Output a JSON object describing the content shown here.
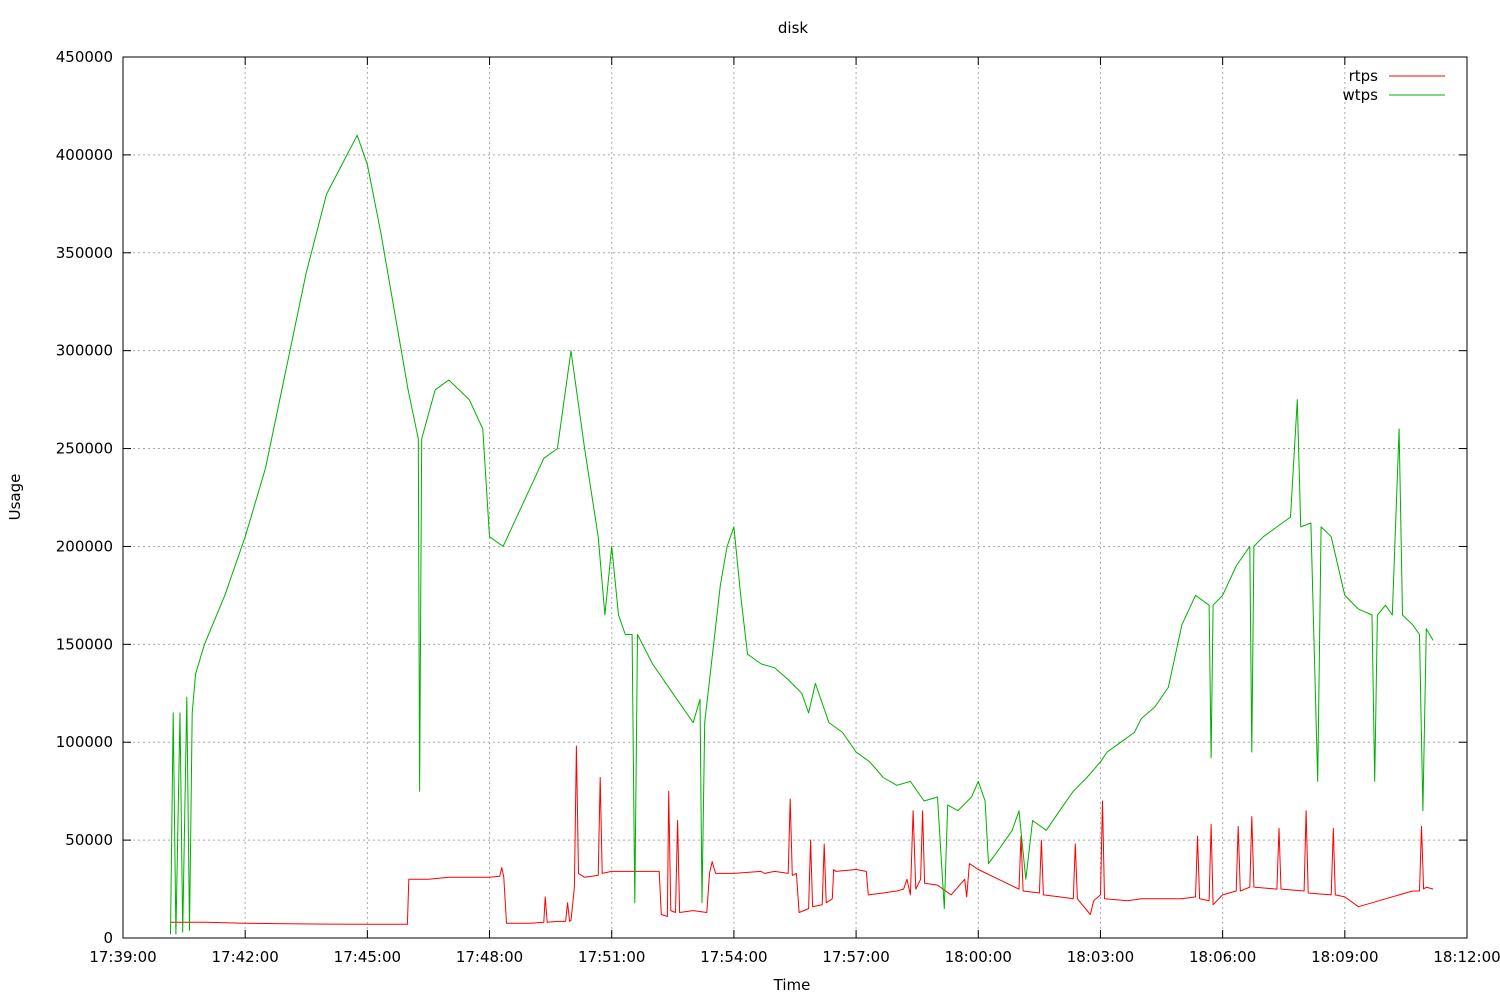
{
  "chart_data": {
    "type": "line",
    "title": "disk",
    "xlabel": "Time",
    "ylabel": "Usage",
    "x_ticks": [
      "17:39:00",
      "17:42:00",
      "17:45:00",
      "17:48:00",
      "17:51:00",
      "17:54:00",
      "17:57:00",
      "18:00:00",
      "18:03:00",
      "18:06:00",
      "18:09:00",
      "18:12:00"
    ],
    "x_range": [
      "17:39:00",
      "18:12:00"
    ],
    "ylim": [
      0,
      450000
    ],
    "y_ticks": [
      0,
      50000,
      100000,
      150000,
      200000,
      250000,
      300000,
      350000,
      400000,
      450000
    ],
    "grid": true,
    "legend_position": "top-right",
    "series": [
      {
        "name": "rtps",
        "color": "#ff0000",
        "points": [
          [
            "17:40:10",
            8000
          ],
          [
            "17:41:00",
            8000
          ],
          [
            "17:42:00",
            7500
          ],
          [
            "17:43:00",
            7300
          ],
          [
            "17:44:00",
            7100
          ],
          [
            "17:45:00",
            7000
          ],
          [
            "17:45:59",
            7000
          ],
          [
            "17:46:01",
            30000
          ],
          [
            "17:46:30",
            30000
          ],
          [
            "17:47:00",
            31000
          ],
          [
            "17:47:30",
            31000
          ],
          [
            "17:48:00",
            31000
          ],
          [
            "17:48:15",
            31500
          ],
          [
            "17:48:18",
            36000
          ],
          [
            "17:48:21",
            31000
          ],
          [
            "17:48:25",
            7500
          ],
          [
            "17:49:00",
            7500
          ],
          [
            "17:49:20",
            8000
          ],
          [
            "17:49:22",
            21000
          ],
          [
            "17:49:25",
            8000
          ],
          [
            "17:49:40",
            8500
          ],
          [
            "17:49:52",
            8500
          ],
          [
            "17:49:55",
            18000
          ],
          [
            "17:49:58",
            8500
          ],
          [
            "17:50:00",
            9000
          ],
          [
            "17:50:05",
            26000
          ],
          [
            "17:50:08",
            98000
          ],
          [
            "17:50:11",
            33000
          ],
          [
            "17:50:20",
            31000
          ],
          [
            "17:50:40",
            32000
          ],
          [
            "17:50:43",
            82000
          ],
          [
            "17:50:46",
            33000
          ],
          [
            "17:51:00",
            34000
          ],
          [
            "17:52:00",
            34000
          ],
          [
            "17:52:10",
            34000
          ],
          [
            "17:52:13",
            12000
          ],
          [
            "17:52:22",
            11000
          ],
          [
            "17:52:24",
            75000
          ],
          [
            "17:52:27",
            14000
          ],
          [
            "17:52:34",
            13000
          ],
          [
            "17:52:37",
            60000
          ],
          [
            "17:52:40",
            13000
          ],
          [
            "17:53:00",
            14000
          ],
          [
            "17:53:20",
            13000
          ],
          [
            "17:53:24",
            33000
          ],
          [
            "17:53:28",
            39000
          ],
          [
            "17:53:33",
            33000
          ],
          [
            "17:54:00",
            33000
          ],
          [
            "17:54:40",
            34000
          ],
          [
            "17:54:45",
            33000
          ],
          [
            "17:55:00",
            34000
          ],
          [
            "17:55:20",
            33000
          ],
          [
            "17:55:23",
            71000
          ],
          [
            "17:55:26",
            32000
          ],
          [
            "17:55:32",
            33000
          ],
          [
            "17:55:36",
            13000
          ],
          [
            "17:55:50",
            15000
          ],
          [
            "17:55:53",
            50000
          ],
          [
            "17:55:56",
            16000
          ],
          [
            "17:56:10",
            17000
          ],
          [
            "17:56:13",
            48000
          ],
          [
            "17:56:16",
            18000
          ],
          [
            "17:56:25",
            20000
          ],
          [
            "17:56:27",
            35000
          ],
          [
            "17:56:30",
            34000
          ],
          [
            "17:57:00",
            35000
          ],
          [
            "17:57:15",
            34000
          ],
          [
            "17:57:18",
            22000
          ],
          [
            "17:57:40",
            23000
          ],
          [
            "17:58:00",
            24000
          ],
          [
            "17:58:10",
            25000
          ],
          [
            "17:58:15",
            30000
          ],
          [
            "17:58:20",
            22000
          ],
          [
            "17:58:24",
            65000
          ],
          [
            "17:58:28",
            25000
          ],
          [
            "17:58:35",
            30000
          ],
          [
            "17:58:38",
            65000
          ],
          [
            "17:58:41",
            28000
          ],
          [
            "17:59:00",
            27000
          ],
          [
            "17:59:20",
            22000
          ],
          [
            "17:59:40",
            30000
          ],
          [
            "17:59:43",
            21000
          ],
          [
            "17:59:47",
            38000
          ],
          [
            "18:00:00",
            35000
          ],
          [
            "18:00:30",
            30000
          ],
          [
            "18:01:00",
            25000
          ],
          [
            "18:01:03",
            52000
          ],
          [
            "18:01:06",
            24000
          ],
          [
            "18:01:30",
            23000
          ],
          [
            "18:01:33",
            50000
          ],
          [
            "18:01:36",
            22000
          ],
          [
            "18:02:00",
            21000
          ],
          [
            "18:02:20",
            20000
          ],
          [
            "18:02:23",
            48000
          ],
          [
            "18:02:26",
            20000
          ],
          [
            "18:02:45",
            12000
          ],
          [
            "18:02:50",
            19000
          ],
          [
            "18:03:00",
            22000
          ],
          [
            "18:03:03",
            70000
          ],
          [
            "18:03:06",
            20000
          ],
          [
            "18:03:40",
            19000
          ],
          [
            "18:04:00",
            20000
          ],
          [
            "18:05:00",
            20000
          ],
          [
            "18:05:20",
            21000
          ],
          [
            "18:05:23",
            52000
          ],
          [
            "18:05:26",
            20000
          ],
          [
            "18:05:40",
            19000
          ],
          [
            "18:05:43",
            58000
          ],
          [
            "18:05:46",
            17000
          ],
          [
            "18:06:00",
            22000
          ],
          [
            "18:06:20",
            24000
          ],
          [
            "18:06:23",
            57000
          ],
          [
            "18:06:26",
            24000
          ],
          [
            "18:06:40",
            26000
          ],
          [
            "18:06:43",
            62000
          ],
          [
            "18:06:46",
            26000
          ],
          [
            "18:07:20",
            25000
          ],
          [
            "18:07:23",
            56000
          ],
          [
            "18:07:26",
            25000
          ],
          [
            "18:08:00",
            24000
          ],
          [
            "18:08:03",
            65000
          ],
          [
            "18:08:06",
            23000
          ],
          [
            "18:08:40",
            22000
          ],
          [
            "18:08:43",
            56000
          ],
          [
            "18:08:46",
            22000
          ],
          [
            "18:09:00",
            21000
          ],
          [
            "18:09:20",
            16000
          ],
          [
            "18:09:40",
            18000
          ],
          [
            "18:10:00",
            20000
          ],
          [
            "18:10:20",
            22000
          ],
          [
            "18:10:40",
            24000
          ],
          [
            "18:10:50",
            24000
          ],
          [
            "18:10:53",
            57000
          ],
          [
            "18:10:56",
            25000
          ],
          [
            "18:11:00",
            26000
          ],
          [
            "18:11:10",
            25000
          ]
        ]
      },
      {
        "name": "wtps",
        "color": "#00b000",
        "points": [
          [
            "17:40:10",
            2000
          ],
          [
            "17:40:14",
            115000
          ],
          [
            "17:40:18",
            2000
          ],
          [
            "17:40:24",
            115000
          ],
          [
            "17:40:28",
            3000
          ],
          [
            "17:40:34",
            123000
          ],
          [
            "17:40:38",
            4000
          ],
          [
            "17:40:42",
            115000
          ],
          [
            "17:40:47",
            135000
          ],
          [
            "17:41:00",
            150000
          ],
          [
            "17:41:30",
            175000
          ],
          [
            "17:42:00",
            205000
          ],
          [
            "17:42:30",
            240000
          ],
          [
            "17:43:00",
            290000
          ],
          [
            "17:43:30",
            340000
          ],
          [
            "17:44:00",
            380000
          ],
          [
            "17:44:30",
            400000
          ],
          [
            "17:44:45",
            410000
          ],
          [
            "17:45:00",
            395000
          ],
          [
            "17:45:20",
            360000
          ],
          [
            "17:45:40",
            320000
          ],
          [
            "17:46:00",
            280000
          ],
          [
            "17:46:15",
            255000
          ],
          [
            "17:46:17",
            75000
          ],
          [
            "17:46:20",
            255000
          ],
          [
            "17:46:40",
            280000
          ],
          [
            "17:47:00",
            285000
          ],
          [
            "17:47:30",
            275000
          ],
          [
            "17:47:50",
            260000
          ],
          [
            "17:48:00",
            205000
          ],
          [
            "17:48:20",
            200000
          ],
          [
            "17:48:40",
            215000
          ],
          [
            "17:49:00",
            230000
          ],
          [
            "17:49:20",
            245000
          ],
          [
            "17:49:40",
            250000
          ],
          [
            "17:49:50",
            275000
          ],
          [
            "17:50:00",
            300000
          ],
          [
            "17:50:20",
            250000
          ],
          [
            "17:50:40",
            205000
          ],
          [
            "17:50:50",
            165000
          ],
          [
            "17:51:00",
            200000
          ],
          [
            "17:51:10",
            165000
          ],
          [
            "17:51:20",
            155000
          ],
          [
            "17:51:30",
            155000
          ],
          [
            "17:51:34",
            18000
          ],
          [
            "17:51:38",
            155000
          ],
          [
            "17:52:00",
            140000
          ],
          [
            "17:52:30",
            125000
          ],
          [
            "17:52:50",
            115000
          ],
          [
            "17:53:00",
            110000
          ],
          [
            "17:53:10",
            122000
          ],
          [
            "17:53:13",
            18000
          ],
          [
            "17:53:17",
            110000
          ],
          [
            "17:53:40",
            180000
          ],
          [
            "17:53:50",
            200000
          ],
          [
            "17:54:00",
            210000
          ],
          [
            "17:54:10",
            175000
          ],
          [
            "17:54:20",
            145000
          ],
          [
            "17:54:40",
            140000
          ],
          [
            "17:55:00",
            138000
          ],
          [
            "17:55:20",
            132000
          ],
          [
            "17:55:40",
            125000
          ],
          [
            "17:55:50",
            115000
          ],
          [
            "17:56:00",
            130000
          ],
          [
            "17:56:20",
            110000
          ],
          [
            "17:56:40",
            105000
          ],
          [
            "17:57:00",
            95000
          ],
          [
            "17:57:20",
            90000
          ],
          [
            "17:57:40",
            82000
          ],
          [
            "17:58:00",
            78000
          ],
          [
            "17:58:20",
            80000
          ],
          [
            "17:58:40",
            70000
          ],
          [
            "17:59:00",
            72000
          ],
          [
            "17:59:10",
            15000
          ],
          [
            "17:59:15",
            68000
          ],
          [
            "17:59:30",
            65000
          ],
          [
            "17:59:50",
            72000
          ],
          [
            "18:00:00",
            80000
          ],
          [
            "18:00:10",
            70000
          ],
          [
            "18:00:15",
            38000
          ],
          [
            "18:00:30",
            45000
          ],
          [
            "18:00:50",
            55000
          ],
          [
            "18:01:00",
            65000
          ],
          [
            "18:01:10",
            30000
          ],
          [
            "18:01:20",
            60000
          ],
          [
            "18:01:40",
            55000
          ],
          [
            "18:02:00",
            65000
          ],
          [
            "18:02:20",
            75000
          ],
          [
            "18:02:40",
            82000
          ],
          [
            "18:03:00",
            90000
          ],
          [
            "18:03:10",
            95000
          ],
          [
            "18:03:30",
            100000
          ],
          [
            "18:03:50",
            105000
          ],
          [
            "18:04:00",
            112000
          ],
          [
            "18:04:20",
            118000
          ],
          [
            "18:04:40",
            128000
          ],
          [
            "18:05:00",
            160000
          ],
          [
            "18:05:20",
            175000
          ],
          [
            "18:05:40",
            170000
          ],
          [
            "18:05:43",
            92000
          ],
          [
            "18:05:46",
            170000
          ],
          [
            "18:06:00",
            175000
          ],
          [
            "18:06:20",
            190000
          ],
          [
            "18:06:40",
            200000
          ],
          [
            "18:06:43",
            95000
          ],
          [
            "18:06:46",
            200000
          ],
          [
            "18:07:00",
            205000
          ],
          [
            "18:07:20",
            210000
          ],
          [
            "18:07:40",
            215000
          ],
          [
            "18:07:50",
            275000
          ],
          [
            "18:07:55",
            210000
          ],
          [
            "18:08:10",
            212000
          ],
          [
            "18:08:20",
            80000
          ],
          [
            "18:08:25",
            210000
          ],
          [
            "18:08:40",
            205000
          ],
          [
            "18:09:00",
            175000
          ],
          [
            "18:09:20",
            168000
          ],
          [
            "18:09:40",
            165000
          ],
          [
            "18:09:44",
            80000
          ],
          [
            "18:09:48",
            165000
          ],
          [
            "18:10:00",
            170000
          ],
          [
            "18:10:10",
            165000
          ],
          [
            "18:10:20",
            260000
          ],
          [
            "18:10:25",
            165000
          ],
          [
            "18:10:40",
            160000
          ],
          [
            "18:10:50",
            155000
          ],
          [
            "18:10:55",
            65000
          ],
          [
            "18:11:00",
            158000
          ],
          [
            "18:11:10",
            152000
          ]
        ]
      }
    ]
  }
}
